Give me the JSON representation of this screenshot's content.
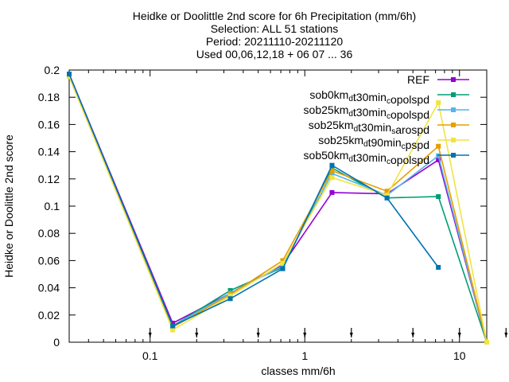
{
  "chart_data": {
    "type": "line",
    "title_lines": [
      "Heidke or Doolittle 2nd score  for 6h Precipitation (mm/6h)",
      "Selection: ALL      51 stations",
      "Period: 20211110-20211120",
      "Used 00,06,12,18 + 06 07 ... 36"
    ],
    "xlabel": "classes mm/6h",
    "ylabel": "Heidke or Doolittle 2nd score",
    "x_scale": "log",
    "xlim": [
      0.03,
      15
    ],
    "ylim": [
      0,
      0.2
    ],
    "x_ticks": [
      0.1,
      1,
      10
    ],
    "x_tick_labels": [
      "0.1",
      "1",
      "10"
    ],
    "y_ticks": [
      0,
      0.02,
      0.04,
      0.06,
      0.08,
      0.1,
      0.12,
      0.14,
      0.16,
      0.18,
      0.2
    ],
    "y_tick_labels": [
      "0",
      "0.02",
      "0.04",
      "0.06",
      "0.08",
      "0.1",
      "0.12",
      "0.14",
      "0.16",
      "0.18",
      "0.2"
    ],
    "class_markers": [
      0.1,
      0.2,
      0.5,
      1,
      2,
      5,
      10,
      20
    ],
    "grid": false,
    "legend_position": "top-right",
    "series": [
      {
        "name": "REF",
        "color": "#9400d3",
        "x": [
          0.03,
          0.14,
          0.33,
          0.72,
          1.5,
          3.4,
          7.3,
          15
        ],
        "y": [
          0.197,
          0.014,
          0.036,
          0.057,
          0.11,
          0.109,
          0.134,
          0.0
        ]
      },
      {
        "name": "sob0km_d t30min_c opolspd",
        "label_parts": [
          [
            "sob0km",
            ""
          ],
          [
            "d",
            "sub"
          ],
          [
            "t30min",
            ""
          ],
          [
            "c",
            "sub"
          ],
          [
            "opolspd",
            ""
          ]
        ],
        "color": "#009e73",
        "x": [
          0.03,
          0.14,
          0.33,
          0.72,
          1.5,
          3.4,
          7.3,
          15
        ],
        "y": [
          0.196,
          0.012,
          0.038,
          0.055,
          0.128,
          0.106,
          0.107,
          0.0
        ]
      },
      {
        "name": "sob25km_d t30min_c opolspd",
        "label_parts": [
          [
            "sob25km",
            ""
          ],
          [
            "d",
            "sub"
          ],
          [
            "t30min",
            ""
          ],
          [
            "c",
            "sub"
          ],
          [
            "opolspd",
            ""
          ]
        ],
        "color": "#56b4e9",
        "x": [
          0.03,
          0.14,
          0.33,
          0.72,
          1.5,
          3.4,
          7.3,
          15
        ],
        "y": [
          0.196,
          0.012,
          0.036,
          0.056,
          0.124,
          0.108,
          0.137,
          0.0
        ]
      },
      {
        "name": "sob25km_d t30min_s arospd",
        "label_parts": [
          [
            "sob25km",
            ""
          ],
          [
            "d",
            "sub"
          ],
          [
            "t30min",
            ""
          ],
          [
            "s",
            "sub"
          ],
          [
            "arospd",
            ""
          ]
        ],
        "color": "#e69f00",
        "x": [
          0.03,
          0.14,
          0.33,
          0.72,
          1.5,
          3.4,
          7.3,
          15
        ],
        "y": [
          0.196,
          0.011,
          0.035,
          0.06,
          0.126,
          0.111,
          0.144,
          0.0
        ]
      },
      {
        "name": "sob25km_d t90min_c pspd",
        "label_parts": [
          [
            "sob25km",
            ""
          ],
          [
            "d",
            "sub"
          ],
          [
            "t90min",
            ""
          ],
          [
            "c",
            "sub"
          ],
          [
            "pspd",
            ""
          ]
        ],
        "color": "#f0e442",
        "x": [
          0.03,
          0.14,
          0.33,
          0.72,
          1.5,
          3.4,
          7.3,
          15
        ],
        "y": [
          0.195,
          0.009,
          0.034,
          0.058,
          0.121,
          0.108,
          0.176,
          0.0
        ]
      },
      {
        "name": "sob50km_d t30min_c opolspd",
        "label_parts": [
          [
            "sob50km",
            ""
          ],
          [
            "d",
            "sub"
          ],
          [
            "t30min",
            ""
          ],
          [
            "c",
            "sub"
          ],
          [
            "opolspd",
            ""
          ]
        ],
        "color": "#0072b2",
        "x": [
          0.03,
          0.14,
          0.33,
          0.72,
          1.5,
          3.4,
          7.3
        ],
        "y": [
          0.197,
          0.012,
          0.032,
          0.054,
          0.13,
          0.106,
          0.055
        ]
      }
    ]
  }
}
